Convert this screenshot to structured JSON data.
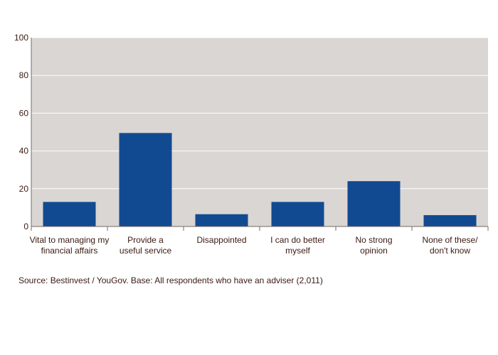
{
  "chart_data": {
    "type": "bar",
    "categories": [
      "Vital to managing my financial affairs",
      "Provide a useful service",
      "Disappointed",
      "I can do better myself",
      "No strong opinion",
      "None of these/ don't know"
    ],
    "category_label_lines": [
      [
        "Vital to managing my",
        "financial affairs"
      ],
      [
        "Provide a",
        "useful service"
      ],
      [
        "Disappointed"
      ],
      [
        "I can do better",
        "myself"
      ],
      [
        "No strong",
        "opinion"
      ],
      [
        "None of these/",
        "don't know"
      ]
    ],
    "values": [
      13,
      49.5,
      6.5,
      13,
      24,
      6
    ],
    "y_ticks": [
      "0",
      "20",
      "40",
      "60",
      "80",
      "100"
    ],
    "ylim": [
      0,
      100
    ],
    "xlabel": "",
    "ylabel": "",
    "grid": true,
    "colors": {
      "bar": "#124a92",
      "plot_bg": "#d9d6d3",
      "grid": "#ffffff",
      "axis": "#7a6a64",
      "text": "#3a1a12"
    }
  },
  "source": "Source: Bestinvest / YouGov. Base: All respondents who have an adviser (2,011)"
}
